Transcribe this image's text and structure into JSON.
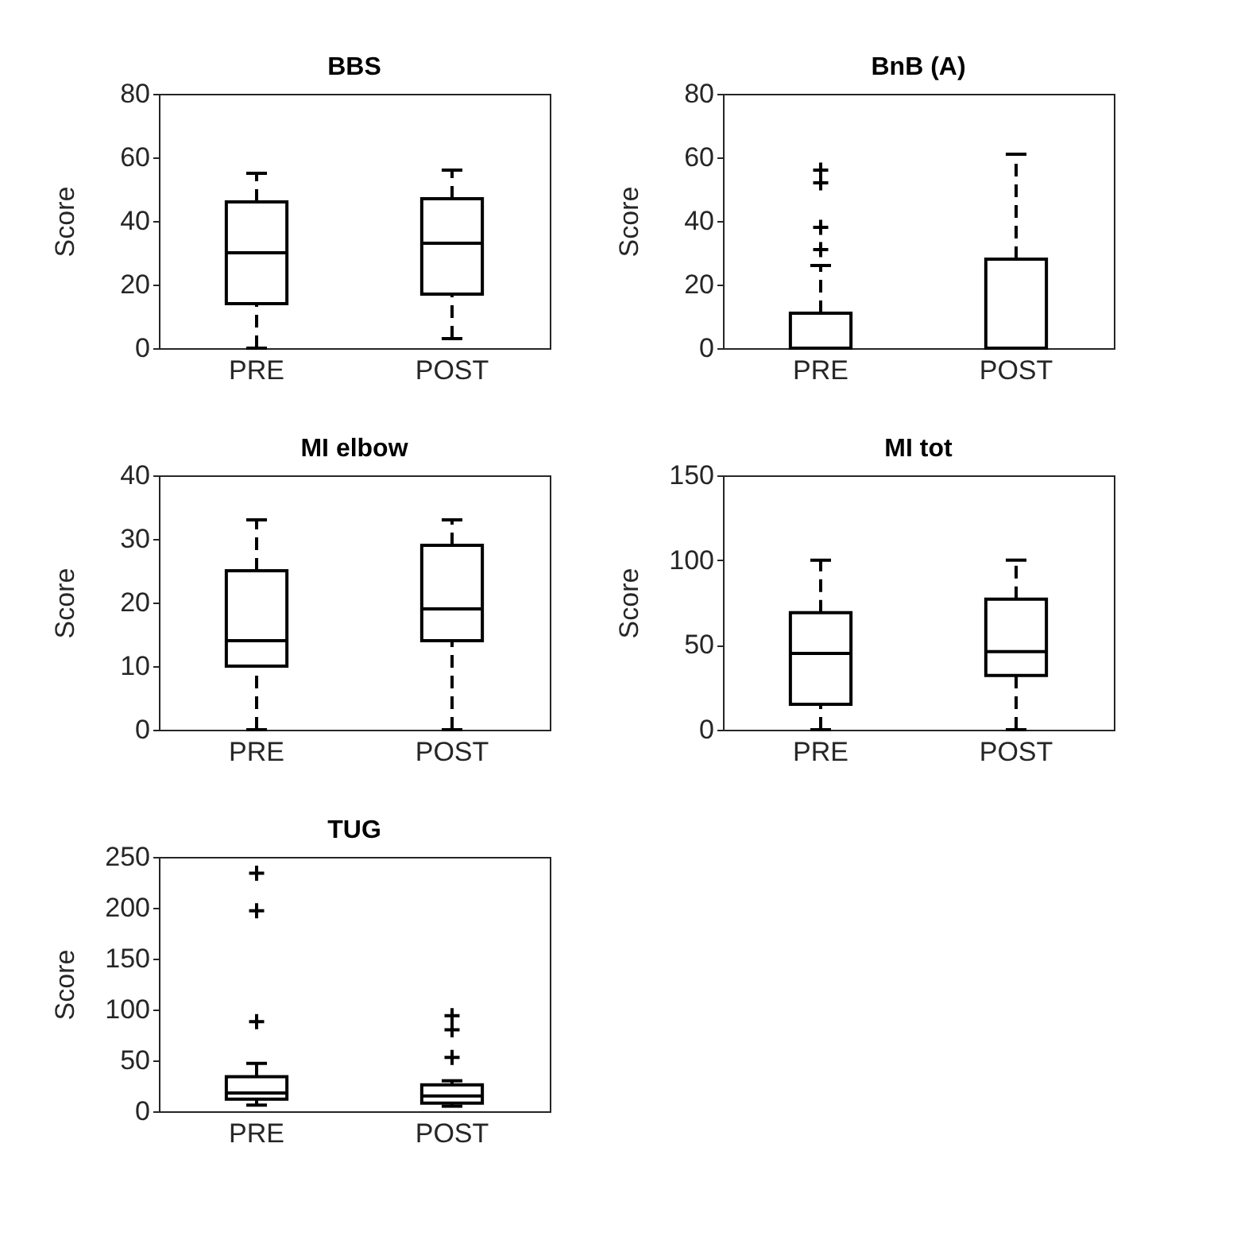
{
  "chart_data": [
    {
      "type": "box",
      "title": "BBS",
      "ylabel": "Score",
      "categories": [
        "PRE",
        "POST"
      ],
      "ylim": [
        0,
        80
      ],
      "yticks": [
        0,
        20,
        40,
        60,
        80
      ],
      "series": [
        {
          "color": "#000000",
          "boxes": [
            {
              "low": 0,
              "q1": 14,
              "median": 30,
              "q3": 46,
              "high": 55
            },
            {
              "low": 3,
              "q1": 17,
              "median": 33,
              "q3": 47,
              "high": 56
            }
          ]
        }
      ]
    },
    {
      "type": "box",
      "title": "BnB (A)",
      "ylabel": "Score",
      "categories": [
        "PRE",
        "POST"
      ],
      "ylim": [
        0,
        80
      ],
      "yticks": [
        0,
        20,
        40,
        60,
        80
      ],
      "series": [
        {
          "color": "#000000",
          "boxes": [
            {
              "low": 0,
              "q1": 0,
              "median": 0,
              "q3": 11,
              "high": 26,
              "outliers": [
                31,
                38,
                52,
                56
              ]
            },
            {
              "low": 0,
              "q1": 0,
              "median": 0,
              "q3": 28,
              "high": 61
            }
          ]
        }
      ]
    },
    {
      "type": "box",
      "title": "MI elbow",
      "ylabel": "Score",
      "categories": [
        "PRE",
        "POST"
      ],
      "ylim": [
        0,
        40
      ],
      "yticks": [
        0,
        10,
        20,
        30,
        40
      ],
      "series": [
        {
          "color": "#000000",
          "boxes": [
            {
              "low": 0,
              "q1": 10,
              "median": 14,
              "q3": 25,
              "high": 33
            },
            {
              "low": 0,
              "q1": 14,
              "median": 19,
              "q3": 29,
              "high": 33
            }
          ]
        }
      ]
    },
    {
      "type": "box",
      "title": "MI tot",
      "ylabel": "Score",
      "categories": [
        "PRE",
        "POST"
      ],
      "ylim": [
        0,
        150
      ],
      "yticks": [
        0,
        50,
        100,
        150
      ],
      "series": [
        {
          "color": "#000000",
          "boxes": [
            {
              "low": 0,
              "q1": 15,
              "median": 45,
              "q3": 69,
              "high": 100
            },
            {
              "low": 0,
              "q1": 32,
              "median": 46,
              "q3": 77,
              "high": 100
            }
          ]
        }
      ]
    },
    {
      "type": "box",
      "title": "TUG",
      "ylabel": "Score",
      "categories": [
        "PRE",
        "POST"
      ],
      "ylim": [
        0,
        250
      ],
      "yticks": [
        0,
        50,
        100,
        150,
        200,
        250
      ],
      "series": [
        {
          "color": "#000000",
          "boxes": [
            {
              "low": 6,
              "q1": 12,
              "median": 18,
              "q3": 34,
              "high": 47,
              "outliers": [
                88,
                197,
                234
              ]
            },
            {
              "low": 5,
              "q1": 8,
              "median": 15,
              "q3": 26,
              "high": 30,
              "outliers": [
                53,
                80,
                94
              ]
            }
          ]
        }
      ]
    }
  ]
}
